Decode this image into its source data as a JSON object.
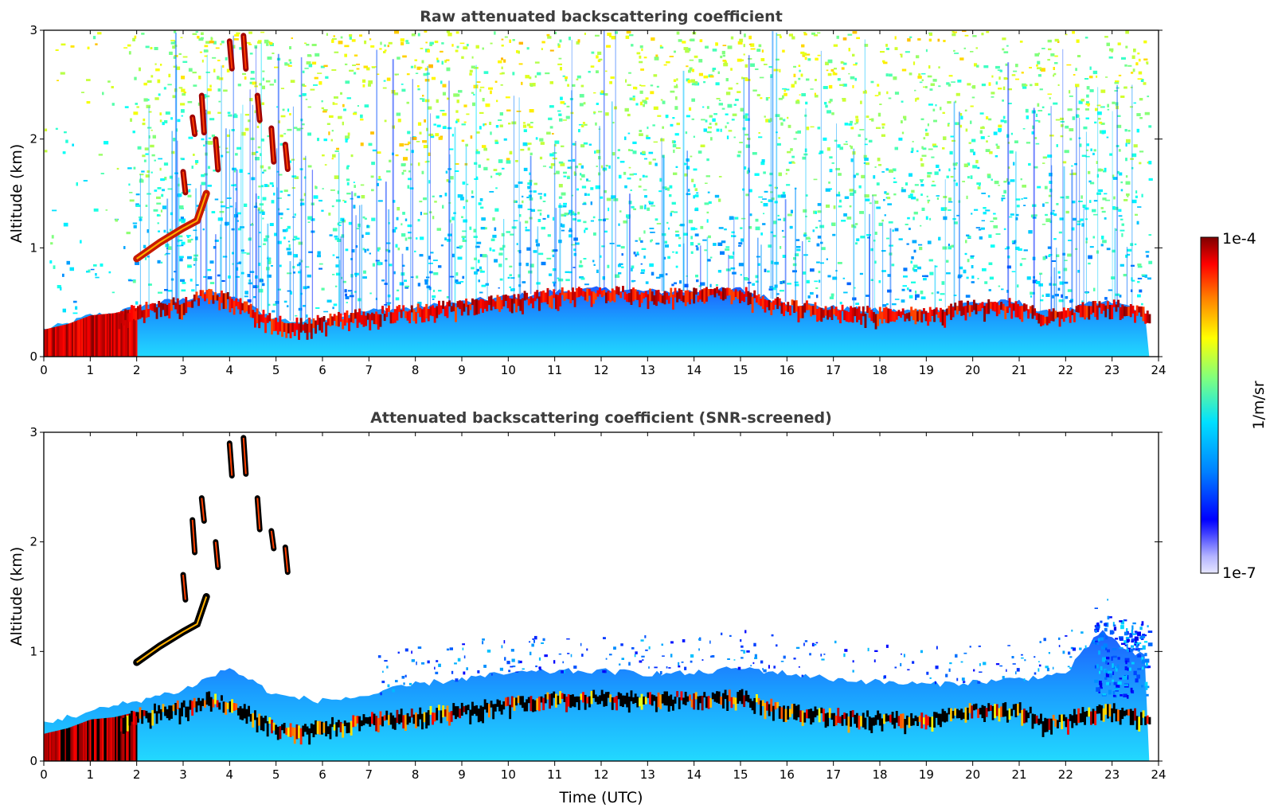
{
  "chart_data": [
    {
      "type": "heatmap",
      "title": "Raw attenuated backscattering coefficient",
      "xlabel": "",
      "ylabel": "Altitude (km)",
      "xlim": [
        0,
        24
      ],
      "ylim": [
        0,
        3
      ],
      "x_ticks": [
        "0",
        "1",
        "2",
        "3",
        "4",
        "5",
        "6",
        "7",
        "8",
        "9",
        "10",
        "11",
        "12",
        "13",
        "14",
        "15",
        "16",
        "17",
        "18",
        "19",
        "20",
        "21",
        "22",
        "23",
        "24"
      ],
      "y_ticks": [
        "0",
        "1",
        "2",
        "3"
      ],
      "boundary_layer_top_km": {
        "x": [
          0,
          0.5,
          1,
          1.5,
          2,
          2.5,
          3,
          3.5,
          4,
          4.5,
          5,
          5.5,
          6,
          7,
          8,
          9,
          10,
          11,
          12,
          13,
          14,
          15,
          15.5,
          16,
          17,
          18,
          19,
          20,
          21,
          21.5,
          22,
          22.5,
          23,
          23.5,
          23.8
        ],
        "y": [
          0.25,
          0.3,
          0.38,
          0.4,
          0.45,
          0.5,
          0.52,
          0.6,
          0.55,
          0.45,
          0.35,
          0.32,
          0.35,
          0.42,
          0.45,
          0.5,
          0.55,
          0.6,
          0.62,
          0.6,
          0.6,
          0.62,
          0.55,
          0.5,
          0.45,
          0.42,
          0.42,
          0.5,
          0.5,
          0.4,
          0.42,
          0.48,
          0.5,
          0.45,
          0.4
        ]
      },
      "rising_layer_km": {
        "x": [
          2,
          2.5,
          3,
          3.3,
          3.5
        ],
        "y": [
          0.9,
          1.05,
          1.18,
          1.25,
          1.5
        ]
      },
      "cloud_streaks_km": {
        "x": [
          3,
          3.2,
          3.4,
          3.7,
          4.0,
          4.3,
          4.6,
          4.9,
          5.2
        ],
        "y": [
          1.7,
          2.2,
          2.4,
          2.0,
          2.9,
          2.95,
          2.4,
          2.1,
          1.95
        ]
      },
      "colorbar": {
        "min_label": "1e-7",
        "max_label": "1e-4",
        "label": "1/m/sr",
        "scale": "log",
        "range": [
          1e-07,
          0.0001
        ]
      }
    },
    {
      "type": "heatmap",
      "title": "Attenuated backscattering coefficient (SNR-screened)",
      "xlabel": "Time (UTC)",
      "ylabel": "Altitude (km)",
      "xlim": [
        0,
        24
      ],
      "ylim": [
        0,
        3
      ],
      "x_ticks": [
        "0",
        "1",
        "2",
        "3",
        "4",
        "5",
        "6",
        "7",
        "8",
        "9",
        "10",
        "11",
        "12",
        "13",
        "14",
        "15",
        "16",
        "17",
        "18",
        "19",
        "20",
        "21",
        "22",
        "23",
        "24"
      ],
      "y_ticks": [
        "0",
        "1",
        "2",
        "3"
      ],
      "screened_top_km": {
        "x": [
          0,
          1,
          2,
          3,
          4,
          5,
          6,
          7,
          8,
          9,
          10,
          11,
          12,
          13,
          14,
          15,
          16,
          17,
          18,
          19,
          20,
          21,
          22,
          22.8,
          23.3,
          23.8
        ],
        "y": [
          0.35,
          0.45,
          0.55,
          0.65,
          0.85,
          0.6,
          0.55,
          0.6,
          0.7,
          0.75,
          0.8,
          0.82,
          0.82,
          0.8,
          0.8,
          0.85,
          0.8,
          0.75,
          0.72,
          0.7,
          0.72,
          0.75,
          0.8,
          1.2,
          1.0,
          0.95
        ]
      }
    }
  ],
  "colors": {
    "jet": [
      "#00007f",
      "#0000ff",
      "#007fff",
      "#00ffff",
      "#7fff7f",
      "#ffff00",
      "#ff7f00",
      "#ff0000",
      "#7f0000"
    ],
    "axis": "#000000",
    "title": "#3d3d3d"
  }
}
